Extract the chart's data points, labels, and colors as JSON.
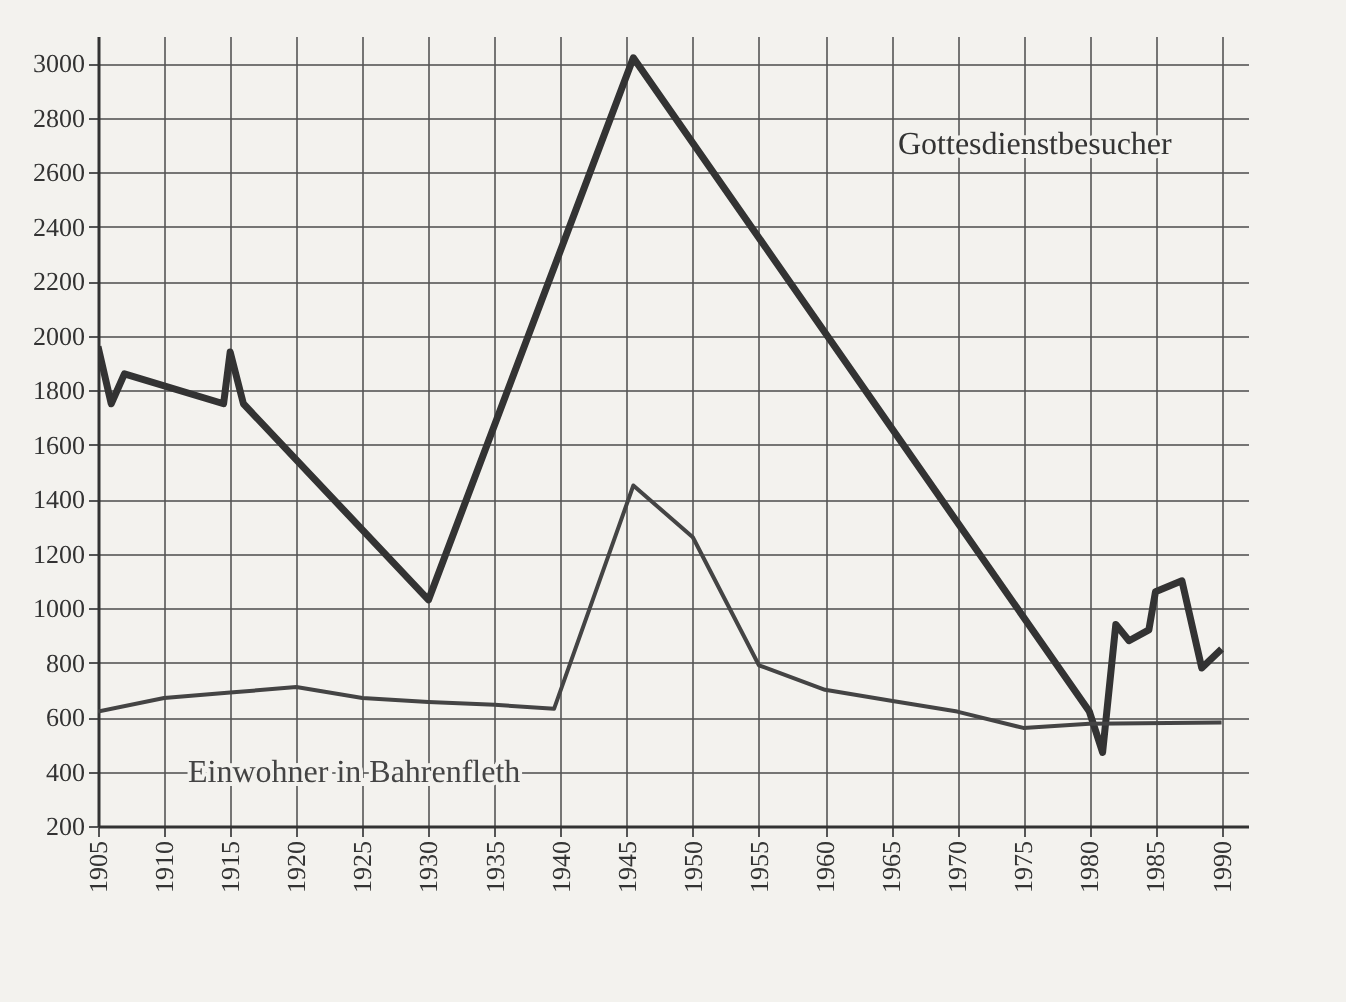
{
  "chart_data": {
    "type": "line",
    "legend": false,
    "grid": true,
    "marker": "none",
    "line_style": "solid",
    "xlim": [
      1905,
      1992
    ],
    "xticks": [
      1905,
      1910,
      1915,
      1920,
      1925,
      1930,
      1935,
      1940,
      1945,
      1950,
      1955,
      1960,
      1965,
      1970,
      1975,
      1980,
      1985,
      1990
    ],
    "ylim": [
      200,
      3100
    ],
    "yticks": [
      200,
      400,
      600,
      800,
      1000,
      1200,
      1400,
      1600,
      1800,
      2000,
      2200,
      2400,
      2600,
      2800,
      3000
    ],
    "series": [
      {
        "name": "Gottesdienstbesucher",
        "color": "#333333",
        "x": [
          1905,
          1906,
          1907,
          1914.5,
          1915,
          1916,
          1930,
          1945.5,
          1980,
          1981,
          1982,
          1983,
          1984.5,
          1985,
          1987,
          1988.5,
          1990
        ],
        "values": [
          1960,
          1750,
          1860,
          1750,
          1940,
          1750,
          1030,
          3020,
          620,
          470,
          940,
          880,
          920,
          1060,
          1100,
          780,
          850
        ]
      },
      {
        "name": "Einwohner in Bahrenfleth",
        "color": "#444444",
        "x": [
          1905,
          1910,
          1915,
          1920,
          1925,
          1930,
          1935,
          1939.5,
          1945.5,
          1950,
          1955,
          1960,
          1965,
          1970,
          1975,
          1980,
          1990
        ],
        "values": [
          620,
          670,
          690,
          710,
          670,
          655,
          645,
          630,
          1450,
          1260,
          790,
          700,
          660,
          620,
          560,
          575,
          580
        ]
      }
    ]
  }
}
